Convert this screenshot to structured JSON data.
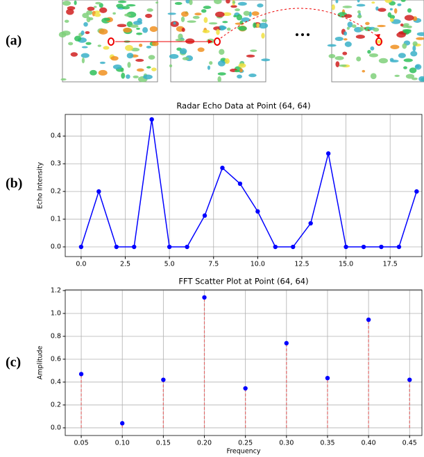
{
  "panel_labels": [
    "(a)",
    "(b)",
    "(c)"
  ],
  "chart_data": [
    {
      "type": "line",
      "title": "Radar Echo Data at Point (64, 64)",
      "y_label": "Echo Intensity",
      "x": [
        0,
        1,
        2,
        3,
        4,
        5,
        6,
        7,
        8,
        9,
        10,
        11,
        12,
        13,
        14,
        15,
        16,
        17,
        18,
        19
      ],
      "values": [
        0,
        0.2,
        0,
        0,
        0.46,
        0,
        0,
        0.113,
        0.285,
        0.228,
        0.128,
        0,
        0,
        0.085,
        0.337,
        0,
        0,
        0,
        0,
        0.2
      ],
      "color": "#0000ff",
      "grid": true,
      "xlim": [
        -0.9,
        19.3
      ],
      "ylim": [
        -0.035,
        0.478
      ],
      "xticks": [
        {
          "value": 0,
          "label": "0.0"
        },
        2.5,
        {
          "value": 5,
          "label": "5.0"
        },
        7.5,
        {
          "value": 10,
          "label": "10.0"
        },
        12.5,
        {
          "value": 15,
          "label": "15.0"
        },
        17.5
      ],
      "yticks": [
        {
          "value": 0,
          "label": "0.0"
        },
        0.1,
        0.2,
        0.3,
        0.4
      ]
    },
    {
      "type": "stem",
      "title": "FFT Scatter Plot at Point (64, 64)",
      "x_label": "Frequency",
      "y_label": "Amplitude",
      "x": [
        0.05,
        0.1,
        0.15,
        0.2,
        0.25,
        0.3,
        0.35,
        0.4,
        0.45
      ],
      "values": [
        0.47,
        0.04,
        0.42,
        1.14,
        0.345,
        0.74,
        0.435,
        0.945,
        0.42
      ],
      "color": "#0000ff",
      "stem_color": "#e06666",
      "grid": true,
      "xlim": [
        0.0305,
        0.465
      ],
      "ylim": [
        -0.067,
        1.206
      ],
      "xticks": [
        0.05,
        {
          "value": 0.1,
          "label": "0.10"
        },
        0.15,
        {
          "value": 0.2,
          "label": "0.20"
        },
        0.25,
        {
          "value": 0.3,
          "label": "0.30"
        },
        0.35,
        {
          "value": 0.4,
          "label": "0.40"
        },
        0.45
      ],
      "yticks": [
        {
          "value": 0,
          "label": "0.0"
        },
        0.2,
        0.4,
        0.6,
        0.8,
        {
          "value": 1,
          "label": "1.0"
        },
        1.2
      ]
    }
  ]
}
